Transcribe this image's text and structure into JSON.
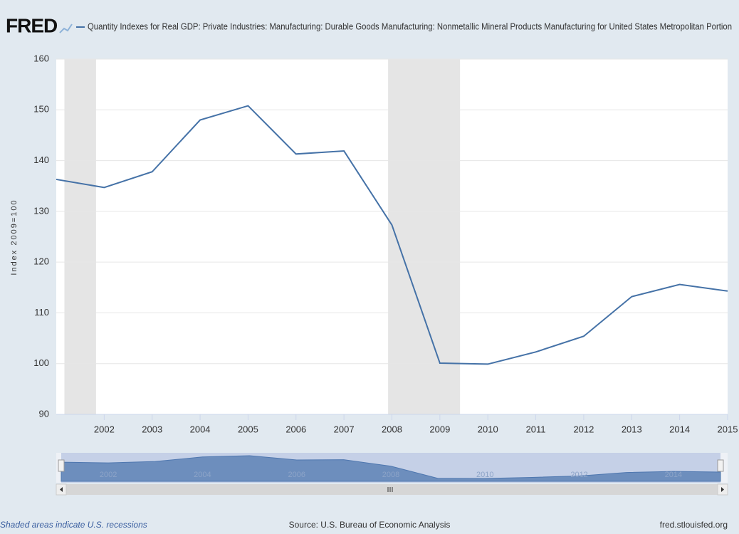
{
  "chart_data": {
    "type": "line",
    "logo": "FRED",
    "title": "Quantity Indexes for Real GDP: Private Industries: Manufacturing: Durable Goods Manufacturing: Nonmetallic Mineral Products Manufacturing for United States Metropolitan Portion",
    "y_label": "Index 2009=100",
    "x": [
      2001,
      2002,
      2003,
      2004,
      2005,
      2006,
      2007,
      2008,
      2009,
      2010,
      2011,
      2012,
      2013,
      2014,
      2015
    ],
    "series": [
      {
        "name": "Quantity Indexes for Real GDP: Private Industries: Manufacturing: Durable Goods Manufacturing: Nonmetallic Mineral Products Manufacturing for United States Metropolitan Portion",
        "color": "#4572a7",
        "values": [
          136.3,
          134.7,
          137.8,
          148.0,
          150.8,
          141.3,
          141.9,
          127.3,
          100.1,
          99.9,
          102.3,
          105.4,
          113.2,
          115.6,
          114.3
        ]
      }
    ],
    "xlim": [
      2001,
      2015
    ],
    "xticks": [
      2002,
      2003,
      2004,
      2005,
      2006,
      2007,
      2008,
      2009,
      2010,
      2011,
      2012,
      2013,
      2014,
      2015
    ],
    "ylim": [
      90,
      160
    ],
    "yticks": [
      90,
      100,
      110,
      120,
      130,
      140,
      150,
      160
    ],
    "grid": true,
    "recessions": [
      {
        "start": 2001.17,
        "end": 2001.83
      },
      {
        "start": 2007.92,
        "end": 2009.42
      }
    ],
    "recession_color": "#e5e5e5",
    "navigator_xticks": [
      2002,
      2004,
      2006,
      2008,
      2010,
      2012,
      2014
    ],
    "footer_left": "Shaded areas indicate U.S. recessions",
    "footer_center": "Source: U.S. Bureau of Economic Analysis",
    "footer_right": "fred.stlouisfed.org"
  }
}
